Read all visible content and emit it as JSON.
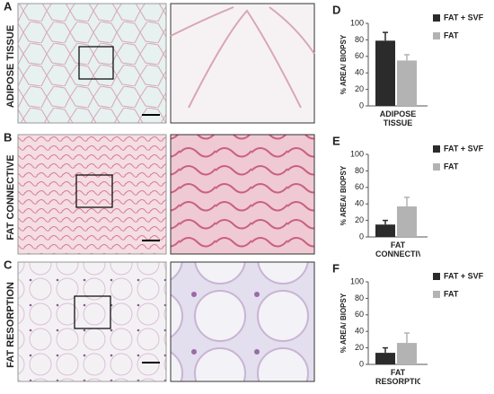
{
  "panels": [
    {
      "label": "A",
      "title": "ADIPOSE TISSUE"
    },
    {
      "label": "B",
      "title": "FAT CONNECTIVE"
    },
    {
      "label": "C",
      "title": "FAT RESORPTION"
    }
  ],
  "chart_data": [
    {
      "type": "bar",
      "panel_label": "D",
      "ylabel": "% AREA/ BIOPSY",
      "categories": [
        "ADIPOSE TISSUE"
      ],
      "series": [
        {
          "name": "FAT + SVF",
          "color": "#2b2b2b",
          "values": [
            79
          ],
          "errors": [
            10
          ]
        },
        {
          "name": "FAT",
          "color": "#b3b3b3",
          "values": [
            55
          ],
          "errors": [
            7
          ]
        }
      ],
      "ylim": [
        0,
        100
      ],
      "yticks": [
        0,
        20,
        40,
        60,
        80,
        100
      ]
    },
    {
      "type": "bar",
      "panel_label": "E",
      "ylabel": "% AREA/ BIOPSY",
      "categories": [
        "FAT CONNECTIVE"
      ],
      "series": [
        {
          "name": "FAT + SVF",
          "color": "#2b2b2b",
          "values": [
            15
          ],
          "errors": [
            5
          ]
        },
        {
          "name": "FAT",
          "color": "#b3b3b3",
          "values": [
            37
          ],
          "errors": [
            11
          ]
        }
      ],
      "ylim": [
        0,
        100
      ],
      "yticks": [
        0,
        20,
        40,
        60,
        80,
        100
      ]
    },
    {
      "type": "bar",
      "panel_label": "F",
      "ylabel": "% AREA/ BIOPSY",
      "categories": [
        "FAT RESORPTION"
      ],
      "series": [
        {
          "name": "FAT + SVF",
          "color": "#2b2b2b",
          "values": [
            14
          ],
          "errors": [
            6
          ]
        },
        {
          "name": "FAT",
          "color": "#b3b3b3",
          "values": [
            26
          ],
          "errors": [
            12
          ]
        }
      ],
      "ylim": [
        0,
        100
      ],
      "yticks": [
        0,
        20,
        40,
        60,
        80,
        100
      ]
    }
  ]
}
